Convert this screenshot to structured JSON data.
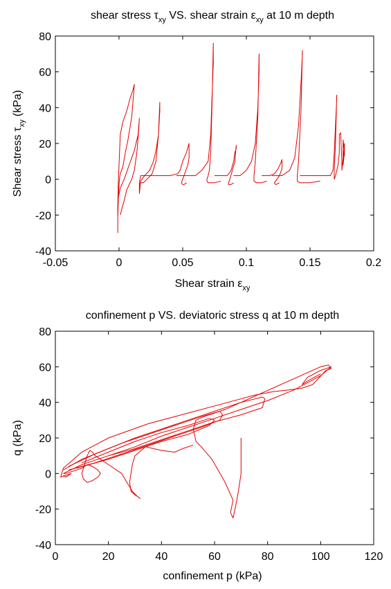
{
  "chart_data": [
    {
      "type": "line",
      "title": "shear stress τxy VS. shear strain εxy at 10 m depth",
      "title_parts": {
        "a": "shear stress τ",
        "a_sub": "xy",
        "b": " VS. shear strain ε",
        "b_sub": "xy",
        "c": " at 10 m depth"
      },
      "xlabel": "Shear strain εxy",
      "xlabel_parts": {
        "main": "Shear strain ε",
        "sub": "xy"
      },
      "ylabel": "Shear stress τxy (kPa)",
      "ylabel_parts": {
        "main": "Shear stress τ",
        "sub": "xy",
        "tail": " (kPa)"
      },
      "xlim": [
        -0.05,
        0.2
      ],
      "ylim": [
        -40,
        80
      ],
      "xticks": [
        "-0.05",
        "0",
        "0.05",
        "0.1",
        "0.15",
        "0.2"
      ],
      "xtick_values": [
        -0.05,
        0,
        0.05,
        0.1,
        0.15,
        0.2
      ],
      "yticks": [
        "-40",
        "-20",
        "0",
        "20",
        "40",
        "60",
        "80"
      ],
      "ytick_values": [
        -40,
        -20,
        0,
        20,
        40,
        60,
        80
      ],
      "grid": false,
      "line_color": "#e00000",
      "series": [
        {
          "x": [
            -0.001,
            -0.001,
            -0.0005,
            0,
            0.001,
            0.003,
            0.006,
            0.009,
            0.011,
            0.012,
            0.01,
            0.007,
            0.005,
            0.004,
            0.003,
            0.002,
            0.001,
            0.0005,
            0,
            -0.0008,
            -0.001,
            -0.0005,
            0.001,
            0.004,
            0.008,
            0.012,
            0.015,
            0.016,
            0.0155,
            0.014,
            0.012,
            0.01,
            0.008,
            0.006,
            0.004,
            0.002,
            0.001
          ],
          "y": [
            -30,
            -15,
            0,
            8,
            25,
            32,
            38,
            46,
            50,
            53,
            35,
            22,
            15,
            11,
            7,
            5,
            3,
            1,
            -3,
            -15,
            -22,
            -10,
            -5,
            0,
            8,
            16,
            25,
            34,
            28,
            15,
            5,
            0,
            -3,
            -6,
            -12,
            -17,
            -20
          ]
        },
        {
          "x": [
            0.016,
            0.016,
            0.017,
            0.018,
            0.02,
            0.024,
            0.027,
            0.029,
            0.031,
            0.032,
            0.032,
            0.031,
            0.029,
            0.026,
            0.022,
            0.019,
            0.017,
            0.016,
            0.016,
            0.017,
            0.02
          ],
          "y": [
            -2,
            -8,
            -1,
            0,
            2,
            5,
            10,
            16,
            25,
            38,
            43,
            25,
            10,
            3,
            0,
            -2,
            -2,
            -3,
            -2,
            2,
            2
          ]
        },
        {
          "x": [
            0.02,
            0.03,
            0.04,
            0.046,
            0.048,
            0.05,
            0.053,
            0.055,
            0.055,
            0.054,
            0.052,
            0.05,
            0.049,
            0.05,
            0.051,
            0.053
          ],
          "y": [
            2,
            2,
            2,
            3,
            5,
            10,
            15,
            20,
            12,
            8,
            4,
            0,
            -2,
            -3,
            -3,
            -2
          ]
        },
        {
          "x": [
            0.045,
            0.05,
            0.055,
            0.06,
            0.065,
            0.07,
            0.072,
            0.073,
            0.074,
            0.074,
            0.073,
            0.072,
            0.071,
            0.07,
            0.069,
            0.069,
            0.07,
            0.072,
            0.075,
            0.08
          ],
          "y": [
            2,
            2,
            2,
            2,
            5,
            10,
            25,
            45,
            65,
            76,
            40,
            15,
            5,
            2,
            0,
            -1,
            -2,
            -2,
            -2,
            -1
          ]
        },
        {
          "x": [
            0.075,
            0.08,
            0.085,
            0.088,
            0.09,
            0.091,
            0.092,
            0.092,
            0.091,
            0.089,
            0.087,
            0.086,
            0.086,
            0.088,
            0.09
          ],
          "y": [
            2,
            2,
            2,
            5,
            10,
            15,
            17,
            19,
            10,
            5,
            0,
            -2,
            -3,
            -3,
            -2
          ]
        },
        {
          "x": [
            0.09,
            0.095,
            0.1,
            0.104,
            0.107,
            0.109,
            0.11,
            0.11,
            0.109,
            0.107,
            0.106,
            0.106,
            0.108,
            0.112,
            0.116
          ],
          "y": [
            2,
            2,
            5,
            10,
            20,
            40,
            60,
            70,
            35,
            10,
            2,
            -1,
            -2,
            -2,
            -1
          ]
        },
        {
          "x": [
            0.112,
            0.118,
            0.122,
            0.125,
            0.127,
            0.128,
            0.128,
            0.126,
            0.123,
            0.122,
            0.123,
            0.126
          ],
          "y": [
            2,
            2,
            3,
            6,
            9,
            11,
            6,
            2,
            -1,
            -2,
            -3,
            -2
          ]
        },
        {
          "x": [
            0.12,
            0.128,
            0.134,
            0.138,
            0.141,
            0.143,
            0.144,
            0.144,
            0.143,
            0.141,
            0.14,
            0.14,
            0.142,
            0.15,
            0.158
          ],
          "y": [
            2,
            2,
            5,
            12,
            30,
            55,
            70,
            72,
            40,
            10,
            2,
            -1,
            -2,
            -2,
            -1
          ]
        },
        {
          "x": [
            0.142,
            0.15,
            0.16,
            0.166,
            0.168,
            0.169,
            0.17,
            0.171,
            0.171,
            0.17,
            0.169,
            0.169,
            0.17,
            0.172,
            0.173,
            0.173,
            0.174,
            0.175,
            0.175,
            0.176,
            0.176,
            0.177,
            0.176,
            0.177,
            0.177,
            0.176,
            0.177,
            0.176,
            0.177,
            0.177
          ],
          "y": [
            2,
            2,
            2,
            2,
            5,
            15,
            30,
            45,
            47,
            20,
            5,
            0,
            2,
            8,
            15,
            25,
            26,
            10,
            5,
            12,
            22,
            15,
            8,
            20,
            14,
            10,
            18,
            12,
            16,
            13
          ]
        }
      ]
    },
    {
      "type": "line",
      "title": "confinement p VS. deviatoric stress q at 10 m depth",
      "xlabel": "confinement p (kPa)",
      "ylabel": "q (kPa)",
      "xlim": [
        0,
        120
      ],
      "ylim": [
        -40,
        80
      ],
      "xticks": [
        "0",
        "20",
        "40",
        "60",
        "80",
        "100",
        "120"
      ],
      "xtick_values": [
        0,
        20,
        40,
        60,
        80,
        100,
        120
      ],
      "yticks": [
        "-40",
        "-20",
        "0",
        "20",
        "40",
        "60",
        "80"
      ],
      "ytick_values": [
        -40,
        -20,
        0,
        20,
        40,
        60,
        80
      ],
      "grid": false,
      "line_color": "#e00000",
      "series": [
        {
          "x": [
            70,
            70,
            69,
            68,
            67,
            66,
            67,
            64,
            59,
            55,
            53,
            52,
            53,
            56,
            60,
            64,
            100,
            103,
            104,
            102,
            97,
            93,
            88,
            82,
            75,
            65,
            50,
            35,
            20,
            10,
            3,
            2,
            4,
            6,
            4,
            3
          ],
          "y": [
            20,
            0,
            -10,
            -18,
            -25,
            -22,
            -15,
            -5,
            8,
            15,
            18,
            25,
            30,
            32,
            34,
            36,
            60,
            61,
            59,
            58,
            50,
            48,
            47,
            46,
            44,
            40,
            34,
            28,
            20,
            12,
            3,
            -2,
            -1,
            0,
            -2,
            -1
          ]
        },
        {
          "x": [
            52,
            48,
            45,
            40,
            34,
            30,
            29,
            28,
            28.5,
            30,
            32,
            31,
            29,
            27,
            25,
            20,
            17,
            15,
            14,
            13,
            12,
            11,
            10,
            10.5,
            12,
            14,
            16,
            17,
            16,
            14,
            12,
            10,
            8,
            6,
            4,
            3
          ],
          "y": [
            16,
            14,
            12,
            13,
            15,
            10,
            5,
            -5,
            -10,
            -12,
            -14,
            -13,
            -10,
            -5,
            0,
            5,
            8,
            10,
            12,
            13,
            10,
            5,
            0,
            -3,
            -5,
            -4,
            -2,
            0,
            2,
            4,
            5,
            3,
            2,
            1,
            0,
            0
          ]
        },
        {
          "x": [
            3,
            10,
            20,
            30,
            40,
            50,
            60,
            70,
            78,
            79,
            78,
            70,
            60,
            50,
            40,
            30,
            20,
            10,
            3
          ],
          "y": [
            0,
            5,
            10,
            14,
            19,
            24,
            29,
            33,
            37,
            42,
            43,
            40,
            35,
            30,
            25,
            20,
            14,
            8,
            2
          ]
        },
        {
          "x": [
            5,
            15,
            25,
            35,
            45,
            55,
            62,
            63,
            62,
            55,
            45,
            35,
            25,
            15,
            5
          ],
          "y": [
            2,
            6,
            11,
            16,
            21,
            26,
            30,
            33,
            35,
            32,
            27,
            22,
            17,
            11,
            4
          ]
        },
        {
          "x": [
            8,
            20,
            30,
            40,
            50,
            58,
            60,
            58,
            50,
            40,
            30,
            20,
            10
          ],
          "y": [
            3,
            8,
            13,
            18,
            22,
            27,
            30,
            31,
            27,
            23,
            18,
            12,
            6
          ]
        },
        {
          "x": [
            20,
            30,
            40,
            50,
            60,
            70,
            80,
            90,
            100,
            104,
            100,
            95,
            93,
            95,
            100
          ],
          "y": [
            10,
            15,
            21,
            26,
            31,
            36,
            41,
            47,
            55,
            60,
            58,
            54,
            50,
            52,
            56
          ]
        }
      ]
    }
  ]
}
